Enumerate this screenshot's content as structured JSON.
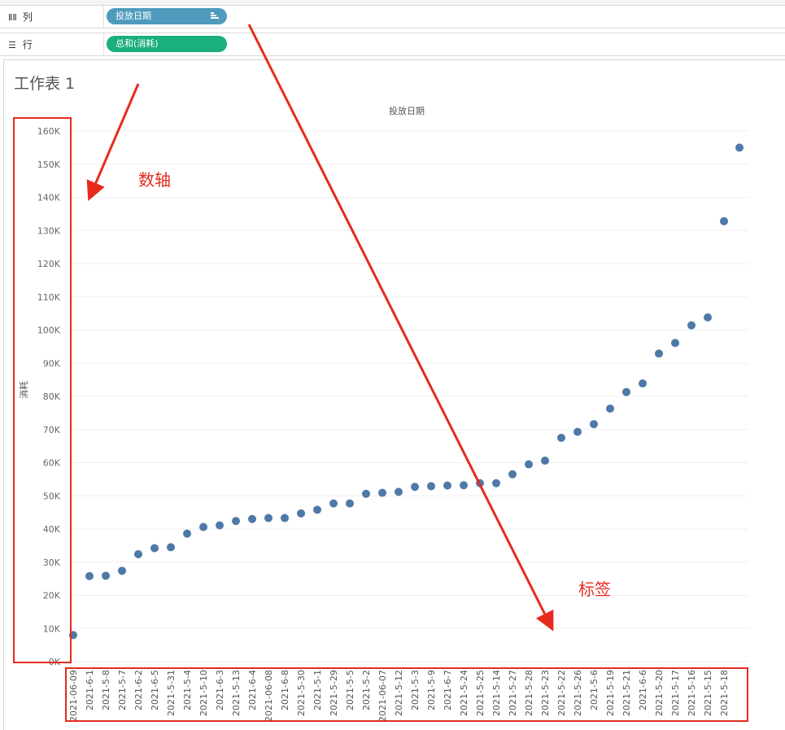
{
  "shelves": {
    "columns": {
      "label": "列",
      "icon": "columns-icon",
      "pill": "投放日期",
      "pill_color": "#4f9bbd"
    },
    "rows": {
      "label": "行",
      "icon": "rows-icon",
      "pill": "总和(消耗)",
      "pill_color": "#1aaf7b"
    }
  },
  "sheet": {
    "title": "工作表 1"
  },
  "annotations": {
    "axis_note": "数轴",
    "label_note": "标签",
    "color": "#e62b1e"
  },
  "chart_data": {
    "type": "scatter",
    "title": "投放日期",
    "ylabel": "消耗",
    "ylim": [
      0,
      160000
    ],
    "y_ticks": [
      "0K",
      "10K",
      "20K",
      "30K",
      "40K",
      "50K",
      "60K",
      "70K",
      "80K",
      "90K",
      "100K",
      "110K",
      "120K",
      "130K",
      "140K",
      "150K",
      "160K"
    ],
    "categories": [
      "2021-06-09",
      "2021-6-1",
      "2021-5-8",
      "2021-5-7",
      "2021-6-2",
      "2021-6-5",
      "2021-5-31",
      "2021-5-4",
      "2021-5-10",
      "2021-6-3",
      "2021-5-13",
      "2021-6-4",
      "2021-06-08",
      "2021-6-8",
      "2021-5-30",
      "2021-5-1",
      "2021-5-29",
      "2021-5-5",
      "2021-5-2",
      "2021-06-07",
      "2021-5-12",
      "2021-5-3",
      "2021-5-9",
      "2021-6-7",
      "2021-5-24",
      "2021-5-25",
      "2021-5-14",
      "2021-5-27",
      "2021-5-28",
      "2021-5-23",
      "2021-5-22",
      "2021-5-26",
      "2021-5-6",
      "2021-5-19",
      "2021-5-21",
      "2021-6-6",
      "2021-5-20",
      "2021-5-17",
      "2021-5-16",
      "2021-5-15",
      "2021-5-18"
    ],
    "values": [
      8000,
      25800,
      25900,
      27400,
      32400,
      34200,
      34500,
      38600,
      40600,
      41100,
      42400,
      43000,
      43300,
      43300,
      44700,
      45800,
      47700,
      47700,
      50600,
      50900,
      51200,
      52700,
      52900,
      53100,
      53200,
      53800,
      53800,
      56500,
      59500,
      60600,
      67500,
      69300,
      71600,
      76300,
      81300,
      83900,
      92900,
      96100,
      101400,
      103800,
      132800
    ],
    "values_note": "",
    "marker_color": "#4e79a7"
  }
}
